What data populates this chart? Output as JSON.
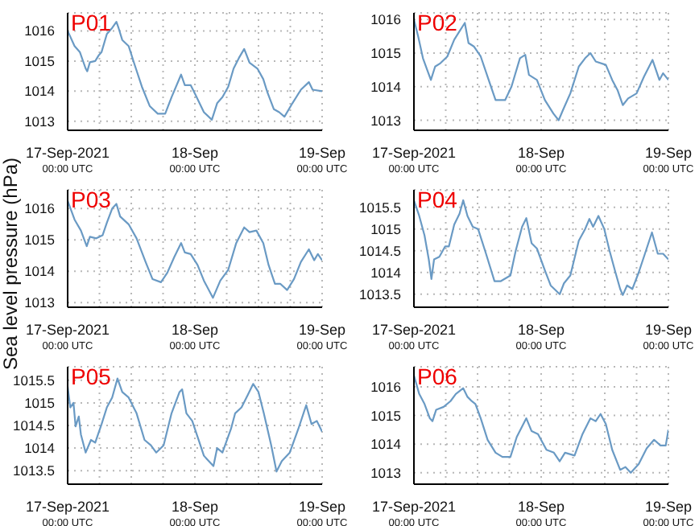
{
  "chart_data": [
    {
      "type": "line",
      "title": "P01",
      "color": "#6a9ac4",
      "grid": true,
      "xlim": [
        "2021-09-17T00:00",
        "2021-09-19T00:00"
      ],
      "ylim": [
        1012.7,
        1016.6
      ],
      "yticks": [
        1013,
        1014,
        1015,
        1016
      ],
      "xticks": [
        {
          "value": "2021-09-17T00:00",
          "label": "17-Sep-2021\n00:00 UTC"
        },
        {
          "value": "2021-09-17T06:00",
          "label": null
        },
        {
          "value": "2021-09-17T12:00",
          "label": null
        },
        {
          "value": "2021-09-17T18:00",
          "label": null
        },
        {
          "value": "2021-09-18T00:00",
          "label": "18-Sep\n00:00 UTC"
        },
        {
          "value": "2021-09-18T06:00",
          "label": null
        },
        {
          "value": "2021-09-18T12:00",
          "label": null
        },
        {
          "value": "2021-09-18T18:00",
          "label": null
        },
        {
          "value": "2021-09-19T00:00",
          "label": "19-Sep\n00:00 UTC"
        }
      ],
      "x": [
        "2021-09-17T00:00",
        "2021-09-17T01:18",
        "2021-09-17T02:18",
        "2021-09-17T03:24",
        "2021-09-17T03:42",
        "2021-09-17T04:12",
        "2021-09-17T05:12",
        "2021-09-17T05:54",
        "2021-09-17T06:24",
        "2021-09-17T07:24",
        "2021-09-17T08:24",
        "2021-09-17T09:12",
        "2021-09-17T09:36",
        "2021-09-17T10:18",
        "2021-09-17T11:30",
        "2021-09-17T12:30",
        "2021-09-17T14:00",
        "2021-09-17T15:30",
        "2021-09-17T17:00",
        "2021-09-17T18:24",
        "2021-09-17T19:36",
        "2021-09-17T21:24",
        "2021-09-17T22:06",
        "2021-09-17T23:12",
        "2021-09-18T00:12",
        "2021-09-18T01:42",
        "2021-09-18T03:12",
        "2021-09-18T04:12",
        "2021-09-18T05:12",
        "2021-09-18T06:18",
        "2021-09-18T07:18",
        "2021-09-18T08:18",
        "2021-09-18T09:18",
        "2021-09-18T10:18",
        "2021-09-18T11:48",
        "2021-09-18T12:54",
        "2021-09-18T13:42",
        "2021-09-18T14:54",
        "2021-09-18T15:54",
        "2021-09-18T16:54",
        "2021-09-18T18:24",
        "2021-09-18T20:00",
        "2021-09-18T21:30",
        "2021-09-18T22:12",
        "2021-09-19T00:00"
      ],
      "values": [
        1016.0,
        1015.5,
        1015.3,
        1014.75,
        1014.66,
        1014.96,
        1015.0,
        1015.2,
        1015.3,
        1015.9,
        1016.1,
        1016.3,
        1016.1,
        1015.7,
        1015.5,
        1014.95,
        1014.15,
        1013.5,
        1013.25,
        1013.25,
        1013.8,
        1014.55,
        1014.2,
        1014.2,
        1013.85,
        1013.3,
        1013.05,
        1013.6,
        1013.8,
        1014.15,
        1014.75,
        1015.1,
        1015.4,
        1014.95,
        1014.75,
        1014.4,
        1013.95,
        1013.4,
        1013.3,
        1013.15,
        1013.6,
        1014.05,
        1014.3,
        1014.05,
        1014.0
      ]
    },
    {
      "type": "line",
      "title": "P02",
      "color": "#6a9ac4",
      "grid": true,
      "xlim": [
        "2021-09-17T00:00",
        "2021-09-19T00:00"
      ],
      "ylim": [
        1012.7,
        1016.2
      ],
      "yticks": [
        1013,
        1014,
        1015,
        1016
      ],
      "xticks": [
        {
          "value": "2021-09-17T00:00",
          "label": "17-Sep-2021\n00:00 UTC"
        },
        {
          "value": "2021-09-17T06:00",
          "label": null
        },
        {
          "value": "2021-09-17T12:00",
          "label": null
        },
        {
          "value": "2021-09-17T18:00",
          "label": null
        },
        {
          "value": "2021-09-18T00:00",
          "label": "18-Sep\n00:00 UTC"
        },
        {
          "value": "2021-09-18T06:00",
          "label": null
        },
        {
          "value": "2021-09-18T12:00",
          "label": null
        },
        {
          "value": "2021-09-18T18:00",
          "label": null
        },
        {
          "value": "2021-09-19T00:00",
          "label": "19-Sep\n00:00 UTC"
        }
      ],
      "x": [
        "2021-09-17T00:00",
        "2021-09-17T00:48",
        "2021-09-17T01:42",
        "2021-09-17T02:30",
        "2021-09-17T03:12",
        "2021-09-17T04:00",
        "2021-09-17T05:00",
        "2021-09-17T06:18",
        "2021-09-17T07:36",
        "2021-09-17T08:36",
        "2021-09-17T09:36",
        "2021-09-17T10:18",
        "2021-09-17T11:18",
        "2021-09-17T12:36",
        "2021-09-17T14:06",
        "2021-09-17T15:24",
        "2021-09-17T17:12",
        "2021-09-17T18:24",
        "2021-09-17T20:00",
        "2021-09-17T21:00",
        "2021-09-17T21:42",
        "2021-09-17T23:12",
        "2021-09-18T00:42",
        "2021-09-18T02:18",
        "2021-09-18T03:18",
        "2021-09-18T04:06",
        "2021-09-18T05:30",
        "2021-09-18T07:06",
        "2021-09-18T08:18",
        "2021-09-18T09:18",
        "2021-09-18T10:18",
        "2021-09-18T12:12",
        "2021-09-18T13:24",
        "2021-09-18T14:24",
        "2021-09-18T15:24",
        "2021-09-18T16:24",
        "2021-09-18T18:00",
        "2021-09-18T19:24",
        "2021-09-18T21:00",
        "2021-09-18T22:18",
        "2021-09-18T23:00",
        "2021-09-19T00:00"
      ],
      "values": [
        1016.0,
        1015.5,
        1014.85,
        1014.5,
        1014.2,
        1014.6,
        1014.7,
        1014.9,
        1015.4,
        1015.65,
        1015.9,
        1015.3,
        1015.2,
        1014.9,
        1014.2,
        1013.6,
        1013.6,
        1014.0,
        1014.85,
        1014.95,
        1014.35,
        1014.2,
        1013.6,
        1013.2,
        1013.0,
        1013.3,
        1013.8,
        1014.6,
        1014.85,
        1015.0,
        1014.75,
        1014.65,
        1014.2,
        1013.9,
        1013.45,
        1013.65,
        1013.8,
        1014.3,
        1014.8,
        1014.2,
        1014.4,
        1014.2
      ]
    },
    {
      "type": "line",
      "title": "P03",
      "ylabel": "Sea level pressure (hPa)",
      "color": "#6a9ac4",
      "grid": true,
      "xlim": [
        "2021-09-17T00:00",
        "2021-09-19T00:00"
      ],
      "ylim": [
        1012.85,
        1016.6
      ],
      "yticks": [
        1013,
        1014,
        1015,
        1016
      ],
      "xticks": [
        {
          "value": "2021-09-17T00:00",
          "label": "17-Sep-2021\n00:00 UTC"
        },
        {
          "value": "2021-09-17T06:00",
          "label": null
        },
        {
          "value": "2021-09-17T12:00",
          "label": null
        },
        {
          "value": "2021-09-17T18:00",
          "label": null
        },
        {
          "value": "2021-09-18T00:00",
          "label": "18-Sep\n00:00 UTC"
        },
        {
          "value": "2021-09-18T06:00",
          "label": null
        },
        {
          "value": "2021-09-18T12:00",
          "label": null
        },
        {
          "value": "2021-09-18T18:00",
          "label": null
        },
        {
          "value": "2021-09-19T00:00",
          "label": "19-Sep\n00:00 UTC"
        }
      ],
      "x": [
        "2021-09-17T00:00",
        "2021-09-17T01:18",
        "2021-09-17T02:30",
        "2021-09-17T03:36",
        "2021-09-17T04:12",
        "2021-09-17T05:24",
        "2021-09-17T06:36",
        "2021-09-17T07:24",
        "2021-09-17T08:24",
        "2021-09-17T09:12",
        "2021-09-17T09:54",
        "2021-09-17T11:30",
        "2021-09-17T13:00",
        "2021-09-17T14:42",
        "2021-09-17T16:00",
        "2021-09-17T17:36",
        "2021-09-17T18:48",
        "2021-09-17T20:06",
        "2021-09-17T21:24",
        "2021-09-17T22:06",
        "2021-09-17T23:12",
        "2021-09-18T00:30",
        "2021-09-18T01:42",
        "2021-09-18T03:24",
        "2021-09-18T04:48",
        "2021-09-18T06:18",
        "2021-09-18T07:48",
        "2021-09-18T09:18",
        "2021-09-18T10:18",
        "2021-09-18T11:36",
        "2021-09-18T12:54",
        "2021-09-18T13:54",
        "2021-09-18T15:06",
        "2021-09-18T16:06",
        "2021-09-18T17:24",
        "2021-09-18T18:42",
        "2021-09-18T20:00",
        "2021-09-18T21:30",
        "2021-09-18T22:30",
        "2021-09-18T23:12",
        "2021-09-19T00:00"
      ],
      "values": [
        1016.25,
        1015.65,
        1015.3,
        1014.8,
        1015.1,
        1015.05,
        1015.15,
        1015.55,
        1016.0,
        1016.15,
        1015.75,
        1015.5,
        1015.05,
        1014.3,
        1013.75,
        1013.65,
        1013.95,
        1014.45,
        1014.9,
        1014.6,
        1014.55,
        1014.2,
        1013.7,
        1013.15,
        1013.7,
        1014.05,
        1014.9,
        1015.4,
        1015.25,
        1015.3,
        1014.9,
        1014.2,
        1013.6,
        1013.6,
        1013.4,
        1013.75,
        1014.3,
        1014.7,
        1014.35,
        1014.55,
        1014.35
      ]
    },
    {
      "type": "line",
      "title": "P04",
      "color": "#6a9ac4",
      "grid": true,
      "xlim": [
        "2021-09-17T00:00",
        "2021-09-19T00:00"
      ],
      "ylim": [
        1013.2,
        1015.9
      ],
      "yticks": [
        1013.5,
        1014,
        1014.5,
        1015,
        1015.5
      ],
      "xticks": [
        {
          "value": "2021-09-17T00:00",
          "label": "17-Sep-2021\n00:00 UTC"
        },
        {
          "value": "2021-09-17T06:00",
          "label": null
        },
        {
          "value": "2021-09-17T12:00",
          "label": null
        },
        {
          "value": "2021-09-17T18:00",
          "label": null
        },
        {
          "value": "2021-09-18T00:00",
          "label": "18-Sep\n00:00 UTC"
        },
        {
          "value": "2021-09-18T06:00",
          "label": null
        },
        {
          "value": "2021-09-18T12:00",
          "label": null
        },
        {
          "value": "2021-09-18T18:00",
          "label": null
        },
        {
          "value": "2021-09-19T00:00",
          "label": "19-Sep\n00:00 UTC"
        }
      ],
      "x": [
        "2021-09-17T00:00",
        "2021-09-17T01:00",
        "2021-09-17T02:00",
        "2021-09-17T02:48",
        "2021-09-17T03:18",
        "2021-09-17T03:48",
        "2021-09-17T04:48",
        "2021-09-17T05:54",
        "2021-09-17T06:36",
        "2021-09-17T07:36",
        "2021-09-17T08:36",
        "2021-09-17T09:18",
        "2021-09-17T10:06",
        "2021-09-17T11:06",
        "2021-09-17T12:06",
        "2021-09-17T13:36",
        "2021-09-17T15:12",
        "2021-09-17T16:24",
        "2021-09-17T18:12",
        "2021-09-17T19:12",
        "2021-09-17T20:24",
        "2021-09-17T21:12",
        "2021-09-17T22:12",
        "2021-09-17T23:12",
        "2021-09-18T00:42",
        "2021-09-18T01:48",
        "2021-09-18T03:30",
        "2021-09-18T04:18",
        "2021-09-18T05:30",
        "2021-09-18T07:06",
        "2021-09-18T08:18",
        "2021-09-18T09:06",
        "2021-09-18T09:48",
        "2021-09-18T10:48",
        "2021-09-18T11:54",
        "2021-09-18T12:54",
        "2021-09-18T13:54",
        "2021-09-18T14:54",
        "2021-09-18T15:24",
        "2021-09-18T16:12",
        "2021-09-18T17:12",
        "2021-09-18T18:24",
        "2021-09-18T19:54",
        "2021-09-18T20:54",
        "2021-09-18T22:00",
        "2021-09-18T23:00",
        "2021-09-19T00:00"
      ],
      "values": [
        1015.66,
        1015.3,
        1014.85,
        1014.3,
        1013.85,
        1014.3,
        1014.36,
        1014.6,
        1014.6,
        1015.1,
        1015.35,
        1015.66,
        1015.3,
        1015.05,
        1015.0,
        1014.43,
        1013.8,
        1013.8,
        1013.93,
        1014.5,
        1015.05,
        1015.25,
        1014.67,
        1014.55,
        1014.05,
        1013.7,
        1013.5,
        1013.75,
        1013.93,
        1014.73,
        1015.0,
        1015.23,
        1015.05,
        1015.3,
        1015.0,
        1014.5,
        1014.05,
        1013.62,
        1013.48,
        1013.7,
        1013.62,
        1014.0,
        1014.55,
        1014.92,
        1014.43,
        1014.43,
        1014.3
      ]
    },
    {
      "type": "line",
      "title": "P05",
      "color": "#6a9ac4",
      "grid": true,
      "xlim": [
        "2021-09-17T00:00",
        "2021-09-19T00:00"
      ],
      "ylim": [
        1013.2,
        1015.8
      ],
      "yticks": [
        1013.5,
        1014,
        1014.5,
        1015,
        1015.5
      ],
      "xticks": [
        {
          "value": "2021-09-17T00:00",
          "label": "17-Sep-2021\n00:00 UTC"
        },
        {
          "value": "2021-09-17T06:00",
          "label": null
        },
        {
          "value": "2021-09-17T12:00",
          "label": null
        },
        {
          "value": "2021-09-17T18:00",
          "label": null
        },
        {
          "value": "2021-09-18T00:00",
          "label": "18-Sep\n00:00 UTC"
        },
        {
          "value": "2021-09-18T06:00",
          "label": null
        },
        {
          "value": "2021-09-18T12:00",
          "label": null
        },
        {
          "value": "2021-09-18T18:00",
          "label": null
        },
        {
          "value": "2021-09-19T00:00",
          "label": "19-Sep\n00:00 UTC"
        }
      ],
      "x": [
        "2021-09-17T00:00",
        "2021-09-17T00:30",
        "2021-09-17T01:06",
        "2021-09-17T01:30",
        "2021-09-17T02:06",
        "2021-09-17T02:30",
        "2021-09-17T03:24",
        "2021-09-17T04:24",
        "2021-09-17T05:12",
        "2021-09-17T06:24",
        "2021-09-17T07:24",
        "2021-09-17T08:24",
        "2021-09-17T09:24",
        "2021-09-17T10:18",
        "2021-09-17T11:30",
        "2021-09-17T13:00",
        "2021-09-17T14:30",
        "2021-09-17T15:42",
        "2021-09-17T16:42",
        "2021-09-17T18:06",
        "2021-09-17T19:36",
        "2021-09-17T21:06",
        "2021-09-17T21:36",
        "2021-09-17T22:24",
        "2021-09-17T23:30",
        "2021-09-18T00:42",
        "2021-09-18T01:42",
        "2021-09-18T03:30",
        "2021-09-18T04:12",
        "2021-09-18T05:12",
        "2021-09-18T06:48",
        "2021-09-18T07:36",
        "2021-09-18T08:48",
        "2021-09-18T10:00",
        "2021-09-18T11:00",
        "2021-09-18T12:00",
        "2021-09-18T13:00",
        "2021-09-18T14:24",
        "2021-09-18T15:24",
        "2021-09-18T16:24",
        "2021-09-18T17:54",
        "2021-09-18T19:30",
        "2021-09-18T21:00",
        "2021-09-18T22:00",
        "2021-09-18T23:00",
        "2021-09-19T00:00"
      ],
      "values": [
        1015.36,
        1014.9,
        1015.0,
        1014.48,
        1014.7,
        1014.3,
        1013.9,
        1014.18,
        1014.12,
        1014.53,
        1014.9,
        1015.12,
        1015.54,
        1015.24,
        1015.12,
        1014.77,
        1014.18,
        1014.06,
        1013.9,
        1014.06,
        1014.77,
        1015.24,
        1015.3,
        1014.77,
        1014.6,
        1014.18,
        1013.83,
        1013.6,
        1014.0,
        1013.9,
        1014.42,
        1014.77,
        1014.9,
        1015.18,
        1015.42,
        1015.24,
        1014.77,
        1014.06,
        1013.48,
        1013.71,
        1013.9,
        1014.42,
        1014.95,
        1014.53,
        1014.6,
        1014.36
      ]
    },
    {
      "type": "line",
      "title": "P06",
      "color": "#6a9ac4",
      "grid": true,
      "xlim": [
        "2021-09-17T00:00",
        "2021-09-19T00:00"
      ],
      "ylim": [
        1012.6,
        1016.7
      ],
      "yticks": [
        1013,
        1014,
        1015,
        1016
      ],
      "xticks": [
        {
          "value": "2021-09-17T00:00",
          "label": "17-Sep-2021\n00:00 UTC"
        },
        {
          "value": "2021-09-17T06:00",
          "label": null
        },
        {
          "value": "2021-09-17T12:00",
          "label": null
        },
        {
          "value": "2021-09-17T18:00",
          "label": null
        },
        {
          "value": "2021-09-18T00:00",
          "label": "18-Sep\n00:00 UTC"
        },
        {
          "value": "2021-09-18T06:00",
          "label": null
        },
        {
          "value": "2021-09-18T12:00",
          "label": null
        },
        {
          "value": "2021-09-18T18:00",
          "label": null
        },
        {
          "value": "2021-09-19T00:00",
          "label": "19-Sep\n00:00 UTC"
        }
      ],
      "x": [
        "2021-09-17T00:00",
        "2021-09-17T01:00",
        "2021-09-17T02:00",
        "2021-09-17T03:00",
        "2021-09-17T03:30",
        "2021-09-17T04:12",
        "2021-09-17T05:36",
        "2021-09-17T06:54",
        "2021-09-17T07:54",
        "2021-09-17T09:18",
        "2021-09-17T10:06",
        "2021-09-17T10:54",
        "2021-09-17T11:36",
        "2021-09-17T12:36",
        "2021-09-17T13:54",
        "2021-09-17T15:24",
        "2021-09-17T16:42",
        "2021-09-17T18:12",
        "2021-09-17T19:24",
        "2021-09-17T21:12",
        "2021-09-17T22:12",
        "2021-09-17T23:24",
        "2021-09-18T01:00",
        "2021-09-18T02:24",
        "2021-09-18T03:30",
        "2021-09-18T04:30",
        "2021-09-18T06:18",
        "2021-09-18T07:48",
        "2021-09-18T09:18",
        "2021-09-18T10:18",
        "2021-09-18T11:12",
        "2021-09-18T12:12",
        "2021-09-18T13:24",
        "2021-09-18T14:54",
        "2021-09-18T15:54",
        "2021-09-18T16:54",
        "2021-09-18T18:24",
        "2021-09-18T19:54",
        "2021-09-18T21:18",
        "2021-09-18T22:30",
        "2021-09-18T23:30",
        "2021-09-19T00:00"
      ],
      "values": [
        1016.4,
        1015.75,
        1015.4,
        1014.9,
        1014.8,
        1015.2,
        1015.3,
        1015.5,
        1015.75,
        1015.95,
        1015.65,
        1015.5,
        1015.4,
        1014.9,
        1014.15,
        1013.7,
        1013.55,
        1013.55,
        1014.25,
        1014.9,
        1014.45,
        1014.35,
        1013.8,
        1013.7,
        1013.4,
        1013.7,
        1013.6,
        1014.35,
        1014.9,
        1014.8,
        1015.05,
        1014.7,
        1013.8,
        1013.1,
        1013.2,
        1013.0,
        1013.3,
        1013.85,
        1014.15,
        1013.95,
        1013.95,
        1014.5
      ]
    }
  ]
}
